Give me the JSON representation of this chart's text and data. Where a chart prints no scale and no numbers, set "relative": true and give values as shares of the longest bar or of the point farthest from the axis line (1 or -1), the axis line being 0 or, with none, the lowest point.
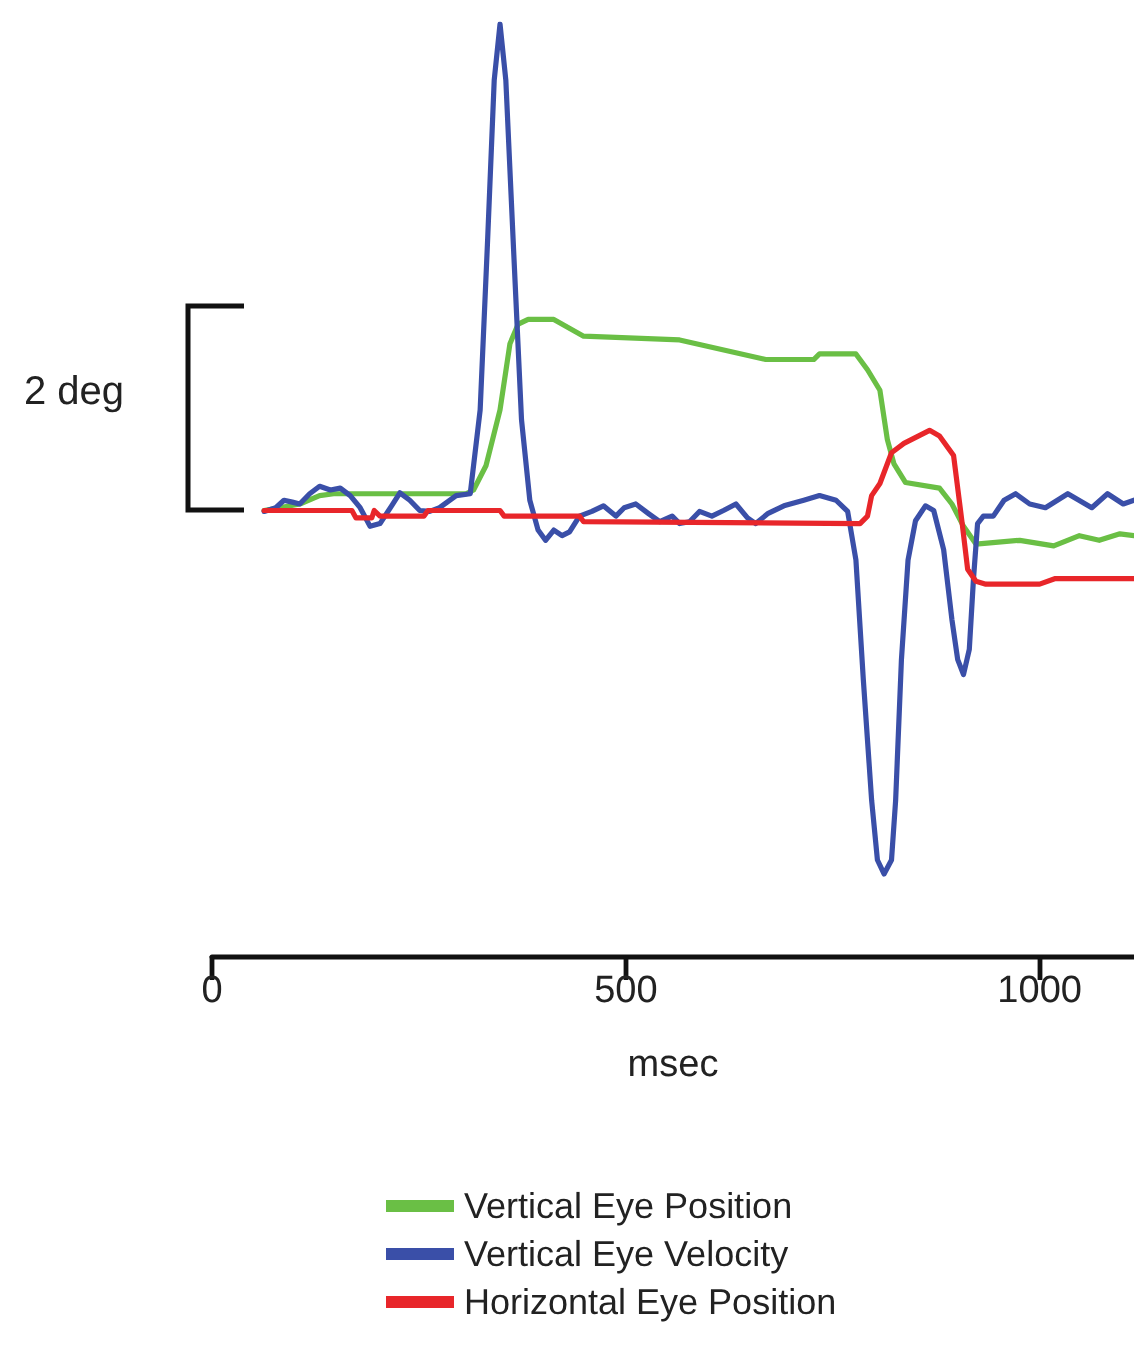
{
  "chart_data": {
    "type": "line",
    "xlabel": "msec",
    "relative": true,
    "marker": "none",
    "legend": "bottom",
    "annotations": [
      "2 deg"
    ],
    "xlim": [
      0,
      1114
    ],
    "xticks": [
      0,
      500,
      1000
    ],
    "series": [
      {
        "name": "Vertical Eye Position",
        "color": "#6abf45",
        "x": [
          63,
          106,
          130,
          147,
          307,
          316,
          331,
          348,
          360,
          370,
          382,
          413,
          449,
          565,
          669,
          727,
          734,
          778,
          792,
          807,
          816,
          824,
          838,
          879,
          894,
          908,
          923,
          976,
          1017,
          1048,
          1072,
          1097,
          1114
        ],
        "values": [
          0.478,
          0.485,
          0.494,
          0.496,
          0.496,
          0.5,
          0.526,
          0.586,
          0.657,
          0.678,
          0.683,
          0.683,
          0.665,
          0.661,
          0.64,
          0.64,
          0.646,
          0.646,
          0.629,
          0.607,
          0.554,
          0.528,
          0.508,
          0.502,
          0.485,
          0.461,
          0.442,
          0.446,
          0.44,
          0.451,
          0.446,
          0.453,
          0.451
        ]
      },
      {
        "name": "Vertical Eye Velocity",
        "color": "#3a4fa8",
        "x": [
          63,
          77,
          87,
          97,
          106,
          118,
          130,
          143,
          155,
          167,
          179,
          191,
          203,
          217,
          227,
          239,
          251,
          263,
          275,
          295,
          312,
          324,
          333,
          341,
          348,
          355,
          365,
          374,
          384,
          394,
          403,
          413,
          423,
          432,
          444,
          459,
          473,
          488,
          498,
          512,
          527,
          541,
          556,
          565,
          577,
          589,
          604,
          618,
          633,
          647,
          657,
          672,
          691,
          715,
          734,
          754,
          768,
          778,
          787,
          797,
          804,
          812,
          821,
          826,
          833,
          841,
          850,
          862,
          872,
          884,
          894,
          901,
          908,
          915,
          920,
          925,
          932,
          944,
          957,
          971,
          988,
          1007,
          1034,
          1063,
          1082,
          1101,
          1114
        ],
        "values": [
          0.477,
          0.481,
          0.489,
          0.487,
          0.485,
          0.496,
          0.504,
          0.5,
          0.502,
          0.494,
          0.481,
          0.461,
          0.464,
          0.483,
          0.497,
          0.489,
          0.478,
          0.477,
          0.481,
          0.494,
          0.496,
          0.586,
          0.768,
          0.94,
          1.0,
          0.94,
          0.746,
          0.575,
          0.489,
          0.457,
          0.446,
          0.457,
          0.451,
          0.455,
          0.472,
          0.477,
          0.483,
          0.472,
          0.481,
          0.485,
          0.475,
          0.466,
          0.472,
          0.464,
          0.466,
          0.477,
          0.472,
          0.478,
          0.485,
          0.47,
          0.464,
          0.475,
          0.483,
          0.489,
          0.494,
          0.489,
          0.477,
          0.425,
          0.296,
          0.167,
          0.103,
          0.088,
          0.103,
          0.167,
          0.318,
          0.425,
          0.467,
          0.483,
          0.478,
          0.436,
          0.361,
          0.318,
          0.302,
          0.329,
          0.404,
          0.464,
          0.472,
          0.472,
          0.489,
          0.496,
          0.485,
          0.481,
          0.496,
          0.481,
          0.496,
          0.485,
          0.489
        ]
      },
      {
        "name": "Horizontal Eye Position",
        "color": "#e8262a",
        "x": [
          63,
          169,
          174,
          193,
          196,
          203,
          256,
          261,
          348,
          353,
          444,
          449,
          783,
          792,
          797,
          807,
          821,
          836,
          867,
          879,
          896,
          906,
          913,
          923,
          935,
          1000,
          1019,
          1114
        ],
        "values": [
          0.478,
          0.478,
          0.47,
          0.47,
          0.478,
          0.472,
          0.472,
          0.478,
          0.478,
          0.472,
          0.472,
          0.466,
          0.464,
          0.472,
          0.494,
          0.507,
          0.54,
          0.55,
          0.564,
          0.558,
          0.537,
          0.467,
          0.415,
          0.402,
          0.399,
          0.399,
          0.405,
          0.405
        ]
      }
    ]
  }
}
